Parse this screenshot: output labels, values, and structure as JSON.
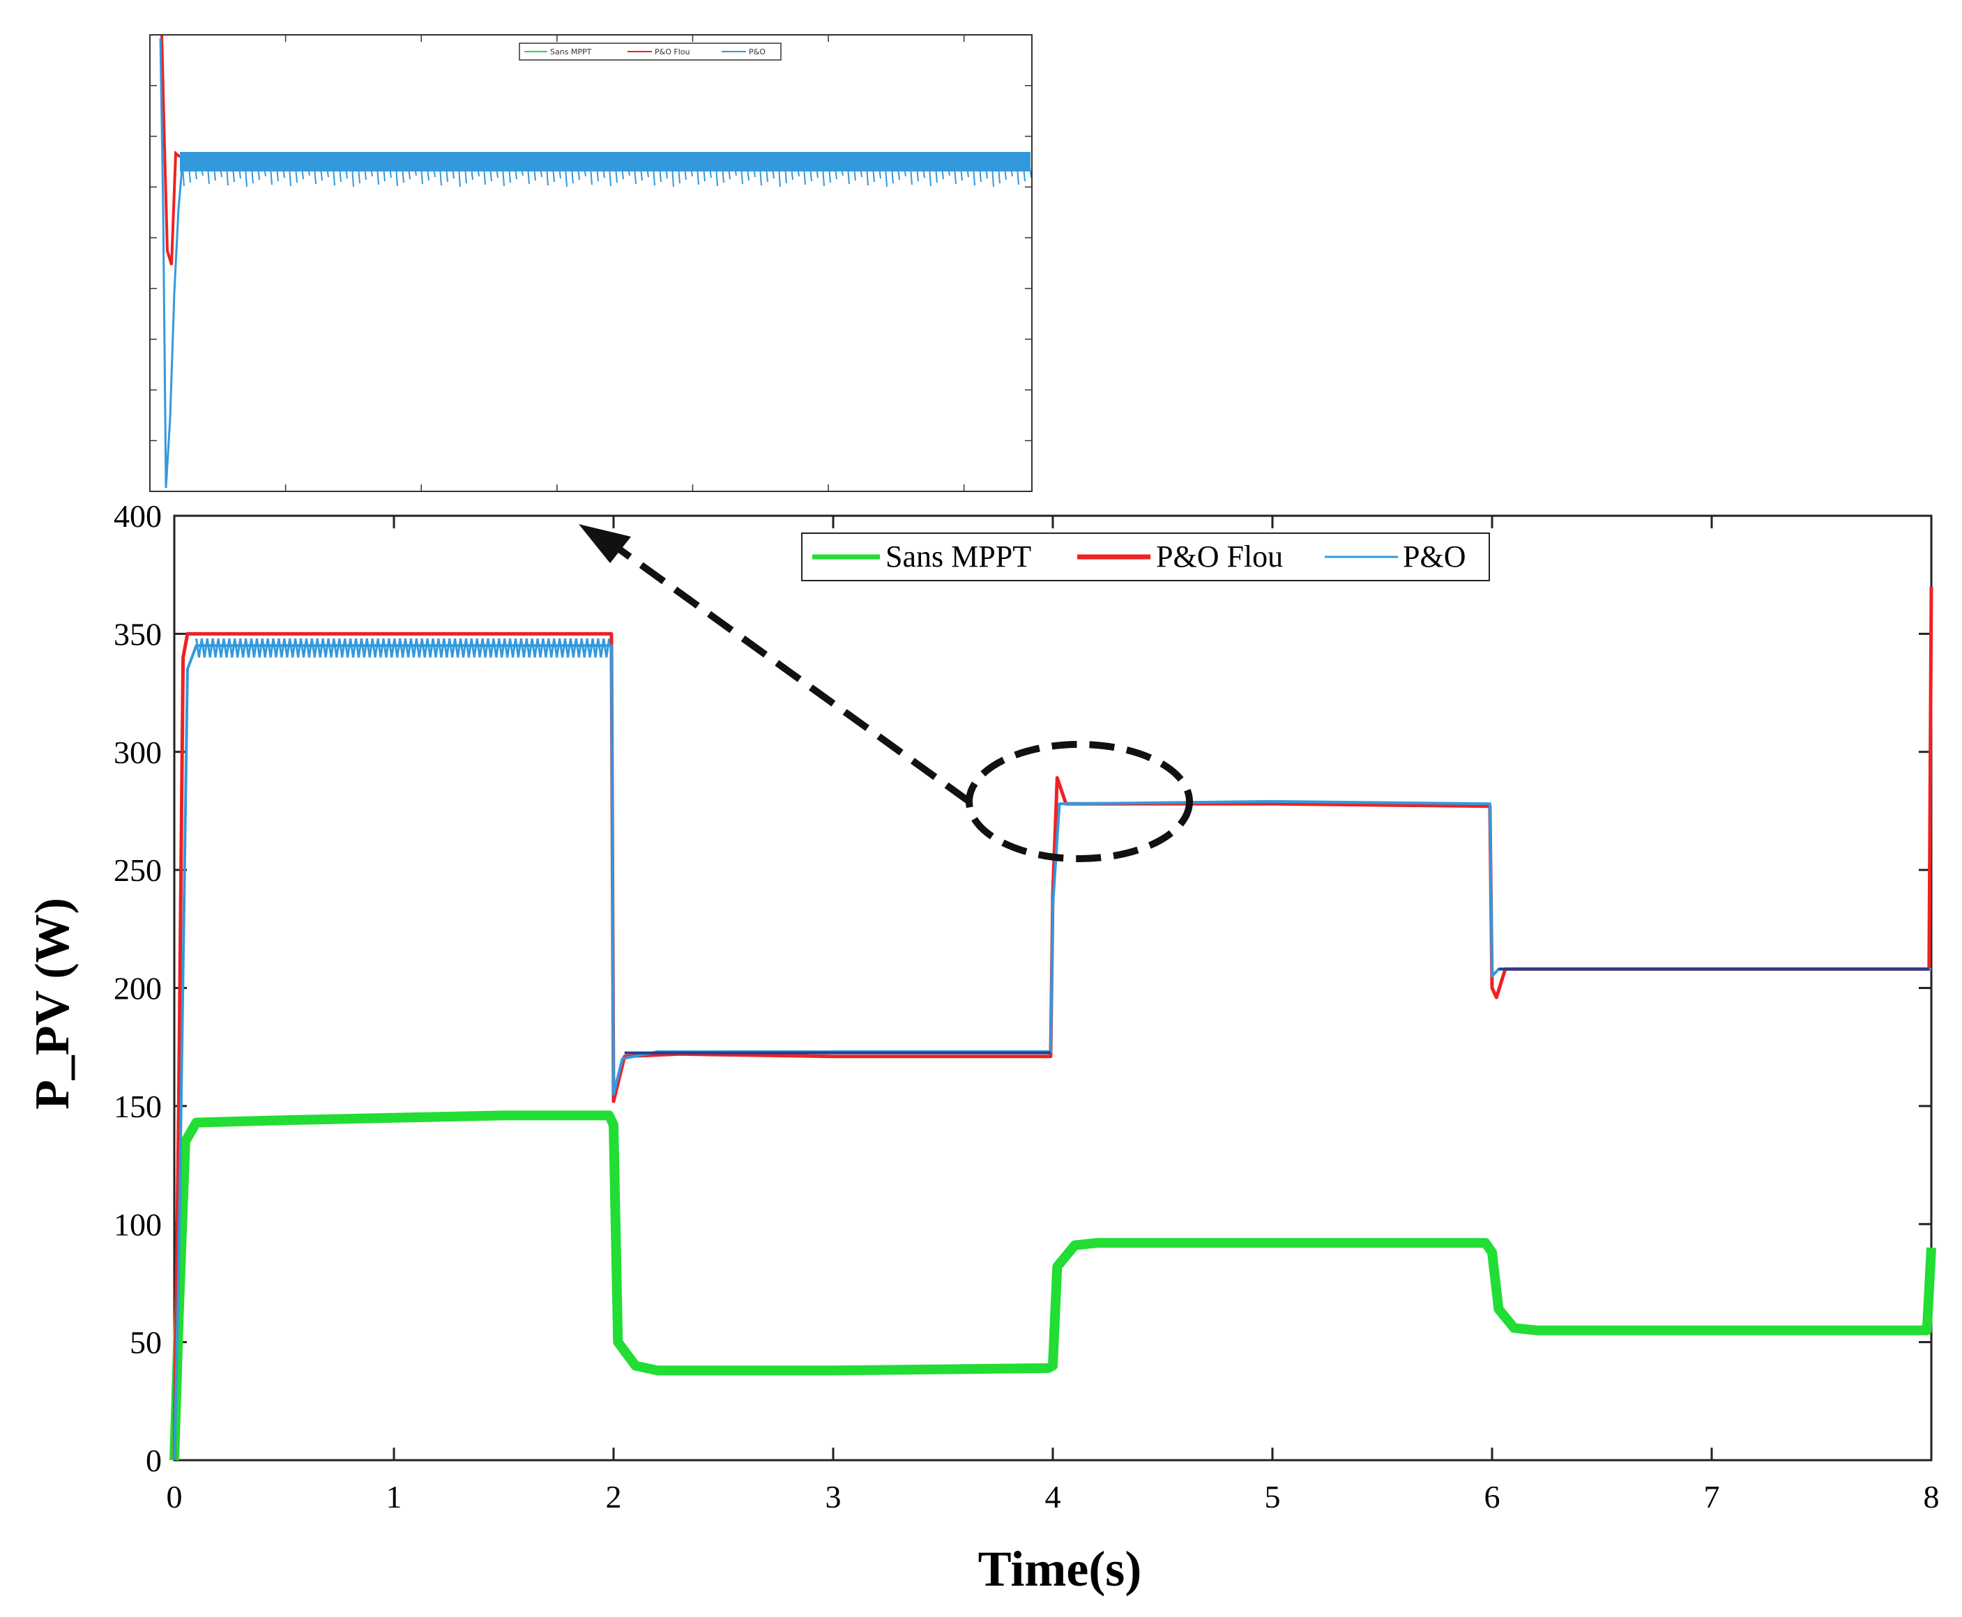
{
  "chart_data": [
    {
      "type": "line",
      "xlabel": "Time(s)",
      "ylabel": "P_PV (W)",
      "xlim": [
        0,
        8
      ],
      "ylim": [
        0,
        400
      ],
      "x_ticks": [
        "0",
        "1",
        "2",
        "3",
        "4",
        "5",
        "6",
        "7",
        "8"
      ],
      "y_ticks": [
        "0",
        "50",
        "100",
        "150",
        "200",
        "250",
        "300",
        "350",
        "400"
      ],
      "legend_position": "top-center",
      "grid": false,
      "series": [
        {
          "name": "Sans MPPT",
          "color": "#22dd33",
          "points": [
            [
              0,
              0
            ],
            [
              0.02,
              60
            ],
            [
              0.05,
              135
            ],
            [
              0.1,
              143
            ],
            [
              0.5,
              144
            ],
            [
              1,
              145
            ],
            [
              1.5,
              146
            ],
            [
              1.98,
              146
            ],
            [
              2.0,
              142
            ],
            [
              2.02,
              50
            ],
            [
              2.1,
              40
            ],
            [
              2.2,
              38
            ],
            [
              3,
              38
            ],
            [
              3.98,
              39
            ],
            [
              4.0,
              40
            ],
            [
              4.02,
              82
            ],
            [
              4.1,
              91
            ],
            [
              4.2,
              92
            ],
            [
              5,
              92
            ],
            [
              5.97,
              92
            ],
            [
              6.0,
              88
            ],
            [
              6.03,
              64
            ],
            [
              6.1,
              56
            ],
            [
              6.2,
              55
            ],
            [
              7,
              55
            ],
            [
              7.98,
              55
            ],
            [
              8.0,
              90
            ]
          ]
        },
        {
          "name": "P&O Flou",
          "color": "#ee2222",
          "points": [
            [
              0,
              0
            ],
            [
              0.02,
              150
            ],
            [
              0.04,
              340
            ],
            [
              0.06,
              350
            ],
            [
              1,
              350
            ],
            [
              1.99,
              350
            ],
            [
              2.0,
              152
            ],
            [
              2.05,
              171
            ],
            [
              2.3,
              172
            ],
            [
              3,
              171
            ],
            [
              3.99,
              171
            ],
            [
              4.0,
              240
            ],
            [
              4.02,
              289
            ],
            [
              4.06,
              278
            ],
            [
              5,
              278
            ],
            [
              5.99,
              277
            ],
            [
              6.0,
              200
            ],
            [
              6.02,
              196
            ],
            [
              6.06,
              208
            ],
            [
              7,
              208
            ],
            [
              7.99,
              208
            ],
            [
              8.0,
              370
            ]
          ]
        },
        {
          "name": "P&O",
          "color": "#3399dd",
          "points": [
            [
              0,
              0
            ],
            [
              0.02,
              80
            ],
            [
              0.06,
              335
            ],
            [
              0.1,
              345
            ],
            [
              1,
              345
            ],
            [
              1.99,
              345
            ],
            [
              2.0,
              155
            ],
            [
              2.04,
              170
            ],
            [
              2.2,
              173
            ],
            [
              3,
              173
            ],
            [
              3.99,
              173
            ],
            [
              4.0,
              235
            ],
            [
              4.03,
              278
            ],
            [
              5,
              279
            ],
            [
              5.99,
              278
            ],
            [
              6.0,
              205
            ],
            [
              6.03,
              208
            ],
            [
              7,
              208
            ],
            [
              7.99,
              208
            ],
            [
              8.0,
              208
            ]
          ]
        }
      ],
      "annotation": "dashed ellipse around t=4.0–4.6 s at ~278 W with dashed arrow pointing to zoomed inset"
    },
    {
      "type": "line",
      "role": "zoomed inset",
      "legend_position": "top-center",
      "series": [
        {
          "name": "Sans MPPT",
          "color": "#22dd33"
        },
        {
          "name": "P&O Flou",
          "color": "#ee2222"
        },
        {
          "name": "P&O",
          "color": "#3399dd"
        }
      ]
    }
  ]
}
